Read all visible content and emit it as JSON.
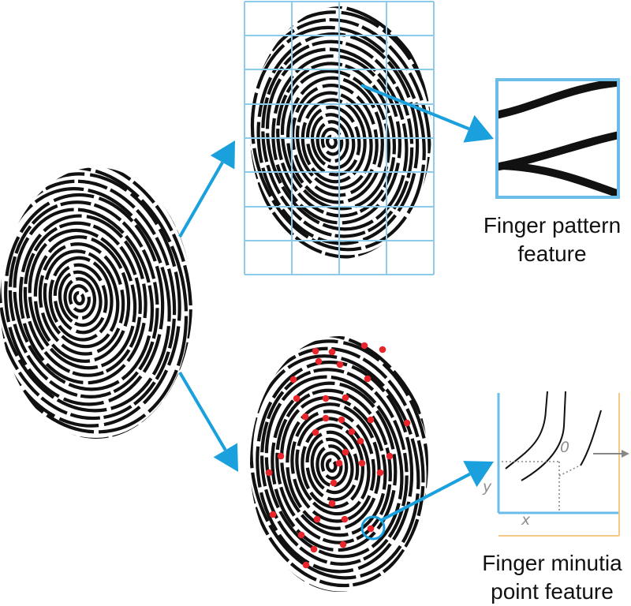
{
  "captions": {
    "pattern_line1": "Finger pattern",
    "pattern_line2": "feature",
    "minutia_line1": "Finger minutia",
    "minutia_line2": "point feature"
  },
  "axes": {
    "x": "x",
    "y": "y",
    "theta": "0"
  },
  "colors": {
    "arrow": "#1aa0dc",
    "grid": "#8ccbea",
    "ridge": "#111111",
    "minutia_dot": "#e8262b",
    "frame_blue": "#6bbde8",
    "frame_orange": "#f7c884",
    "guide": "#888888"
  },
  "icons": [
    "fingerprint-icon",
    "fingerprint-grid-icon",
    "fingerprint-minutia-icon",
    "arrow-icon"
  ]
}
